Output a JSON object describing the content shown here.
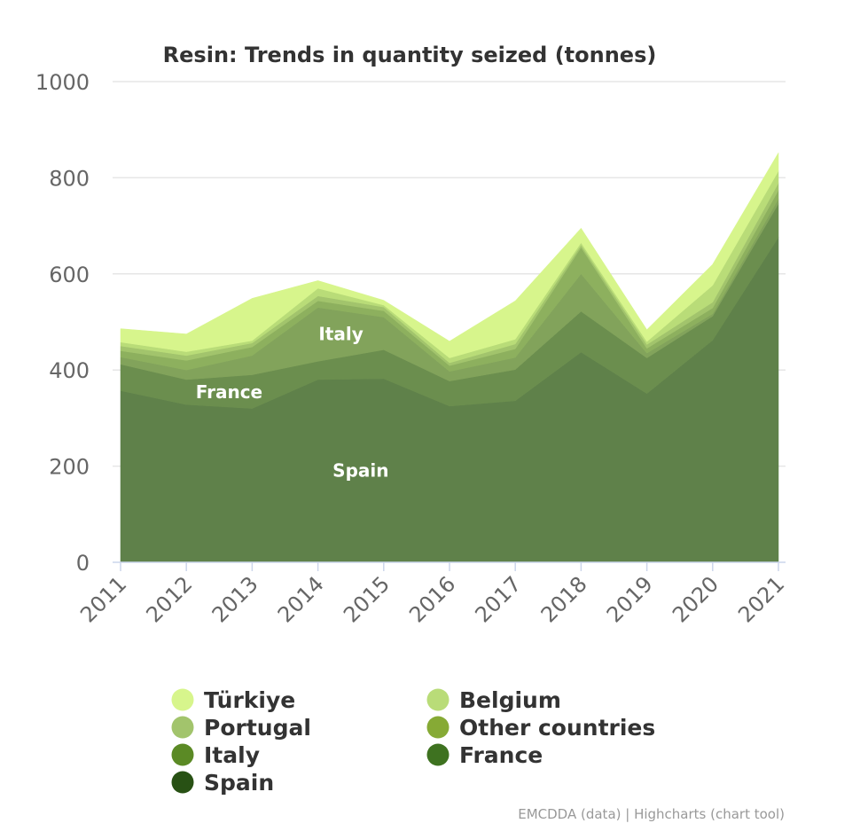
{
  "chart_data": {
    "type": "area",
    "stacked": true,
    "title": "Resin: Trends in quantity seized (tonnes)",
    "categories": [
      "2011",
      "2012",
      "2013",
      "2014",
      "2015",
      "2016",
      "2017",
      "2018",
      "2019",
      "2020",
      "2021"
    ],
    "ylim": [
      0,
      1000
    ],
    "yticks": [
      "0",
      "200",
      "400",
      "600",
      "800",
      "1000"
    ],
    "grid": true,
    "legend_position": "bottom",
    "series": [
      {
        "name": "Spain",
        "color": "#5f814a",
        "label": "Spain",
        "values": [
          357,
          328,
          320,
          380,
          382,
          325,
          336,
          437,
          351,
          462,
          676
        ]
      },
      {
        "name": "France",
        "color": "#6b8e4e",
        "label": "France",
        "values": [
          55,
          52,
          70,
          38,
          60,
          52,
          65,
          85,
          74,
          50,
          70
        ]
      },
      {
        "name": "Italy",
        "color": "#82a35b",
        "label": "Italy",
        "values": [
          15,
          20,
          40,
          112,
          68,
          20,
          25,
          78,
          10,
          5,
          10
        ]
      },
      {
        "name": "Other countries",
        "color": "#8db05e",
        "label": "",
        "values": [
          13,
          20,
          18,
          14,
          13,
          12,
          18,
          55,
          10,
          12,
          18
        ]
      },
      {
        "name": "Portugal",
        "color": "#a2c46c",
        "label": "",
        "values": [
          10,
          10,
          8,
          10,
          8,
          6,
          10,
          5,
          8,
          12,
          15
        ]
      },
      {
        "name": "Belgium",
        "color": "#b9dc78",
        "label": "",
        "values": [
          8,
          8,
          5,
          16,
          4,
          10,
          10,
          5,
          6,
          35,
          25
        ]
      },
      {
        "name": "Türkiye",
        "color": "#d7f58c",
        "label": "",
        "values": [
          28,
          37,
          88,
          16,
          10,
          35,
          80,
          30,
          25,
          44,
          38
        ]
      }
    ],
    "legend": [
      {
        "name": "Türkiye",
        "color": "#d7f58c"
      },
      {
        "name": "Belgium",
        "color": "#b9dc78"
      },
      {
        "name": "Portugal",
        "color": "#a2c46c"
      },
      {
        "name": "Other countries",
        "color": "#86aa35"
      },
      {
        "name": "Italy",
        "color": "#5b8a25"
      },
      {
        "name": "France",
        "color": "#3e7220"
      },
      {
        "name": "Spain",
        "color": "#285114"
      }
    ]
  },
  "credits": "EMCDDA (data) | Highcharts (chart tool)"
}
